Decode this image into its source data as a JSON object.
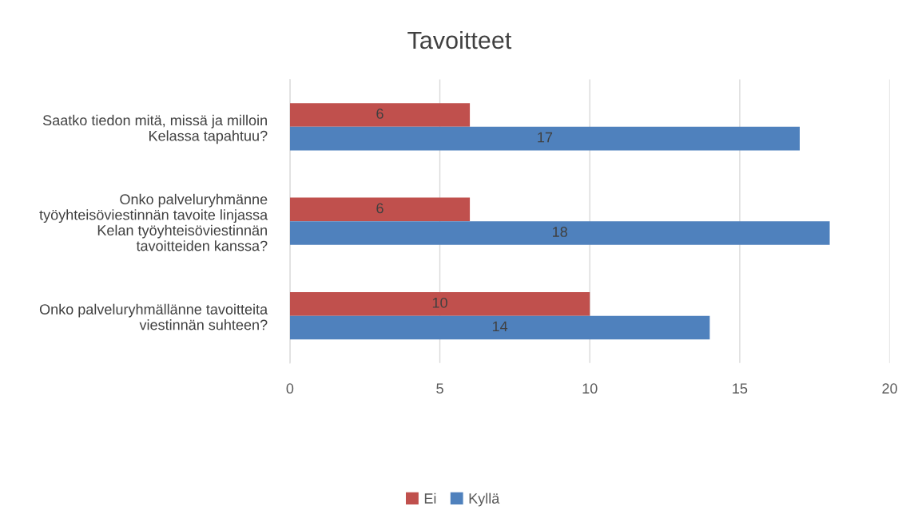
{
  "chart_data": {
    "type": "bar",
    "orientation": "horizontal",
    "title": "Tavoitteet",
    "categories": [
      "Saatko tiedon mitä, missä ja milloin\nKelassa tapahtuu?",
      "Onko palveluryhmänne\ntyöyhteisöviestinnän tavoite linjassa\nKelan työyhteisöviestinnän\ntavoitteiden kanssa?",
      "Onko palveluryhmällänne tavoitteita\nviestinnän suhteen?"
    ],
    "series": [
      {
        "name": "Ei",
        "color": "#c0504d",
        "values": [
          6,
          6,
          10
        ]
      },
      {
        "name": "Kyllä",
        "color": "#4f81bd",
        "values": [
          17,
          18,
          14
        ]
      }
    ],
    "xlim": [
      0,
      20
    ],
    "xticks": [
      0,
      5,
      10,
      15,
      20
    ],
    "grid": "x",
    "legend": "bottom",
    "data_labels": true
  }
}
